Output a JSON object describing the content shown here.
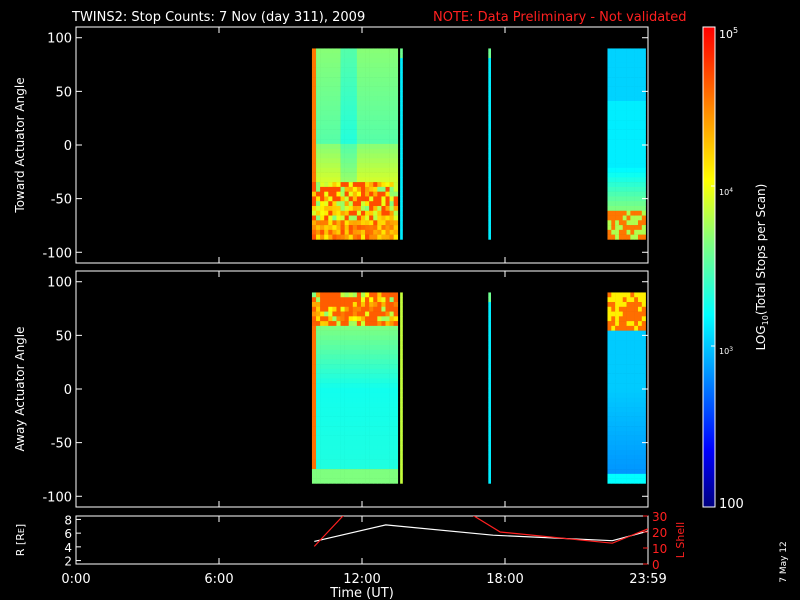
{
  "title": {
    "main": "TWINS2: Stop Counts:  7 Nov (day 311), 2009",
    "note": "NOTE: Data Preliminary - Not validated",
    "note_color": "#ff2020"
  },
  "stamp": "7 May 12",
  "chart_data": [
    {
      "type": "heatmap",
      "panel": "toward",
      "ylabel": "Toward Actuator Angle",
      "ylim": [
        -110,
        110
      ],
      "yticks": [
        "100",
        "50",
        "0",
        "-50",
        "-100"
      ],
      "ytick_values": [
        100,
        50,
        0,
        -50,
        -100
      ],
      "x_range_hours": [
        0,
        24
      ],
      "y_data_range": [
        -88,
        90
      ],
      "blocks": [
        {
          "x0": 9.9,
          "x1": 13.5,
          "profile": "toward_main"
        },
        {
          "x0": 13.6,
          "x1": 13.7,
          "profile": "narrow_cyan"
        },
        {
          "x0": 17.3,
          "x1": 17.4,
          "profile": "narrow_cyan"
        },
        {
          "x0": 22.3,
          "x1": 23.9,
          "profile": "toward_late"
        }
      ]
    },
    {
      "type": "heatmap",
      "panel": "away",
      "ylabel": "Away Actuator Angle",
      "ylim": [
        -110,
        110
      ],
      "yticks": [
        "100",
        "50",
        "0",
        "-50",
        "-100"
      ],
      "ytick_values": [
        100,
        50,
        0,
        -50,
        -100
      ],
      "x_range_hours": [
        0,
        24
      ],
      "y_data_range": [
        -88,
        90
      ],
      "blocks": [
        {
          "x0": 9.9,
          "x1": 13.5,
          "profile": "away_main"
        },
        {
          "x0": 13.6,
          "x1": 13.7,
          "profile": "narrow_yellow"
        },
        {
          "x0": 17.3,
          "x1": 17.4,
          "profile": "narrow_cyan"
        },
        {
          "x0": 22.3,
          "x1": 23.9,
          "profile": "away_late"
        }
      ]
    },
    {
      "type": "line",
      "panel": "orbit",
      "ylabel_left": "R [R",
      "ylabel_left_sub": "E",
      "ylabel_left_close": "]",
      "ylabel_right": "L Shell",
      "ylim_left": [
        1.5,
        8.5
      ],
      "ylim_right": [
        0,
        30
      ],
      "yticks_left": [
        "8",
        "6",
        "4",
        "2"
      ],
      "yticks_left_values": [
        8,
        6,
        4,
        2
      ],
      "yticks_right": [
        "30",
        "20",
        "10",
        "0"
      ],
      "yticks_right_values": [
        30,
        20,
        10,
        0
      ],
      "series": [
        {
          "axis": "left",
          "color": "#ffffff",
          "x": [
            10.0,
            13.0,
            17.5,
            22.5,
            24.0
          ],
          "y": [
            4.8,
            7.2,
            5.7,
            4.9,
            6.3
          ]
        },
        {
          "axis": "right",
          "color": "#ff2020",
          "x": [
            10.0,
            11.2,
            11.3,
            16.6,
            16.7,
            17.8,
            22.5,
            24.0
          ],
          "y": [
            11.0,
            30.0,
            31.0,
            31.0,
            30.0,
            20.0,
            13.0,
            22.0
          ]
        }
      ]
    }
  ],
  "xaxis": {
    "label": "Time (UT)",
    "ticks": [
      "0:00",
      "6:00",
      "12:00",
      "18:00",
      "23:59"
    ],
    "tick_hours": [
      0,
      6,
      12,
      18,
      24
    ]
  },
  "colorbar": {
    "label_prefix": "LOG",
    "label_sub": "10",
    "label_suffix": "(Total Stops per Scan)",
    "tick_top": "10",
    "tick_top_sup": "5",
    "tick_mid": "10",
    "tick_mid_sup": "4",
    "tick_low": "10",
    "tick_low_sup": "3",
    "tick_bottom": "100",
    "tick_values": [
      100000,
      10000,
      1000,
      100
    ]
  }
}
